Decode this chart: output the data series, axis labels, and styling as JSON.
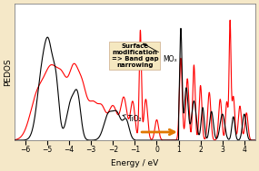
{
  "xlim": [
    -6.5,
    4.5
  ],
  "ylim": [
    0,
    1.0
  ],
  "xlabel": "Energy / eV",
  "ylabel": "PEDOS",
  "background": "#f5e8c8",
  "plot_bg": "#ffffff",
  "ticks": [
    -6,
    -5,
    -4,
    -3,
    -2,
    -1,
    0,
    1,
    2,
    3,
    4
  ],
  "annotation_MO": "MOₓ",
  "annotation_TiO": "TiO₂",
  "box_text": "Surface\nmodification\n=> Band gap\nnarrowing",
  "box_color": "#f5e8c0",
  "arrow_color": "#e07800"
}
